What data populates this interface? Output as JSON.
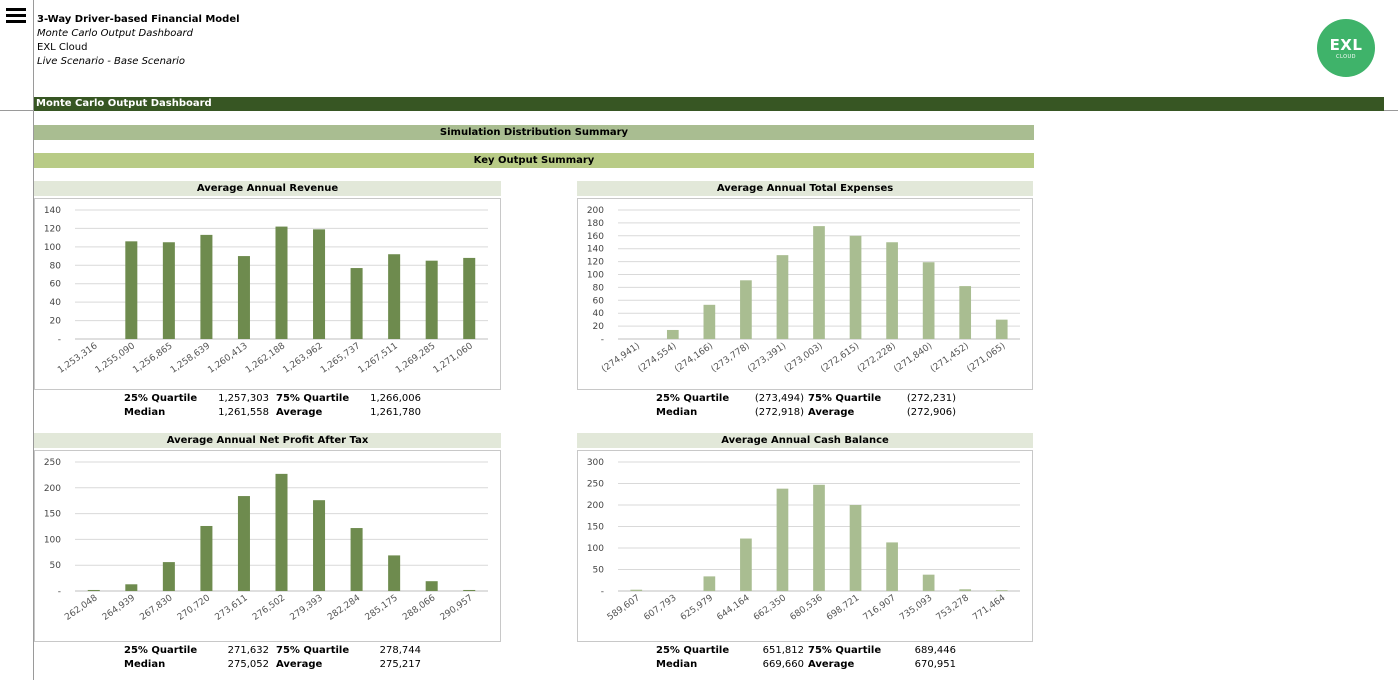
{
  "header": {
    "title": "3-Way Driver-based Financial Model",
    "subtitle": "Monte Carlo Output Dashboard",
    "company": "EXL Cloud",
    "scenario": "Live Scenario - Base Scenario"
  },
  "logo": {
    "text": "EXL",
    "sub": "CLOUD",
    "color": "#3fb36a"
  },
  "menu_icon": "hamburger-icon",
  "bands": {
    "dashboard": "Monte Carlo Output Dashboard",
    "simulation": "Simulation Distribution Summary",
    "key_output": "Key Output Summary"
  },
  "colors": {
    "dark_band": "#375623",
    "bar_dark": "#6e8b4e",
    "bar_light": "#a9bd91"
  },
  "stat_labels": {
    "q25": "25% Quartile",
    "q75": "75% Quartile",
    "median": "Median",
    "average": "Average"
  },
  "charts": [
    {
      "title": "Average Annual Revenue",
      "stats": {
        "q25": "1,257,303",
        "q75": "1,266,006",
        "median": "1,261,558",
        "average": "1,261,780"
      }
    },
    {
      "title": "Average Annual Total Expenses",
      "stats": {
        "q25": "(273,494)",
        "q75": "(272,231)",
        "median": "(272,918)",
        "average": "(272,906)"
      }
    },
    {
      "title": "Average Annual Net Profit After Tax",
      "stats": {
        "q25": "271,632",
        "q75": "278,744",
        "median": "275,052",
        "average": "275,217"
      }
    },
    {
      "title": "Average Annual Cash Balance",
      "stats": {
        "q25": "651,812",
        "q75": "689,446",
        "median": "669,660",
        "average": "670,951"
      }
    }
  ],
  "chart_data": [
    {
      "type": "bar",
      "title": "Average Annual Revenue",
      "color": "#6e8b4e",
      "categories": [
        "1,253,316",
        "1,255,090",
        "1,256,865",
        "1,258,639",
        "1,260,413",
        "1,262,188",
        "1,263,962",
        "1,265,737",
        "1,267,511",
        "1,269,285",
        "1,271,060"
      ],
      "values": [
        0,
        106,
        105,
        113,
        90,
        122,
        119,
        77,
        92,
        85,
        88
      ],
      "yticks": [
        "-",
        "20",
        "40",
        "60",
        "80",
        "100",
        "120",
        "140"
      ],
      "ylim": [
        0,
        140
      ]
    },
    {
      "type": "bar",
      "title": "Average Annual Total Expenses",
      "color": "#a9bd91",
      "categories": [
        "(274,941)",
        "(274,554)",
        "(274,166)",
        "(273,778)",
        "(273,391)",
        "(273,003)",
        "(272,615)",
        "(272,228)",
        "(271,840)",
        "(271,452)",
        "(271,065)"
      ],
      "values": [
        0,
        14,
        53,
        91,
        130,
        175,
        160,
        150,
        119,
        82,
        30
      ],
      "yticks": [
        "-",
        "20",
        "40",
        "60",
        "80",
        "100",
        "120",
        "140",
        "160",
        "180",
        "200"
      ],
      "ylim": [
        0,
        200
      ]
    },
    {
      "type": "bar",
      "title": "Average Annual Net Profit After Tax",
      "color": "#6e8b4e",
      "categories": [
        "262,048",
        "264,939",
        "267,830",
        "270,720",
        "273,611",
        "276,502",
        "279,393",
        "282,284",
        "285,175",
        "288,066",
        "290,957"
      ],
      "values": [
        2,
        13,
        56,
        126,
        184,
        227,
        176,
        122,
        69,
        19,
        2
      ],
      "yticks": [
        "-",
        "50",
        "100",
        "150",
        "200",
        "250"
      ],
      "ylim": [
        0,
        250
      ]
    },
    {
      "type": "bar",
      "title": "Average Annual Cash Balance",
      "color": "#a9bd91",
      "categories": [
        "589,607",
        "607,793",
        "625,979",
        "644,164",
        "662,350",
        "680,536",
        "698,721",
        "716,907",
        "735,093",
        "753,278",
        "771,464"
      ],
      "values": [
        3,
        0,
        34,
        122,
        238,
        247,
        200,
        113,
        38,
        4,
        2
      ],
      "yticks": [
        "-",
        "50",
        "100",
        "150",
        "200",
        "250",
        "300"
      ],
      "ylim": [
        0,
        300
      ]
    }
  ]
}
